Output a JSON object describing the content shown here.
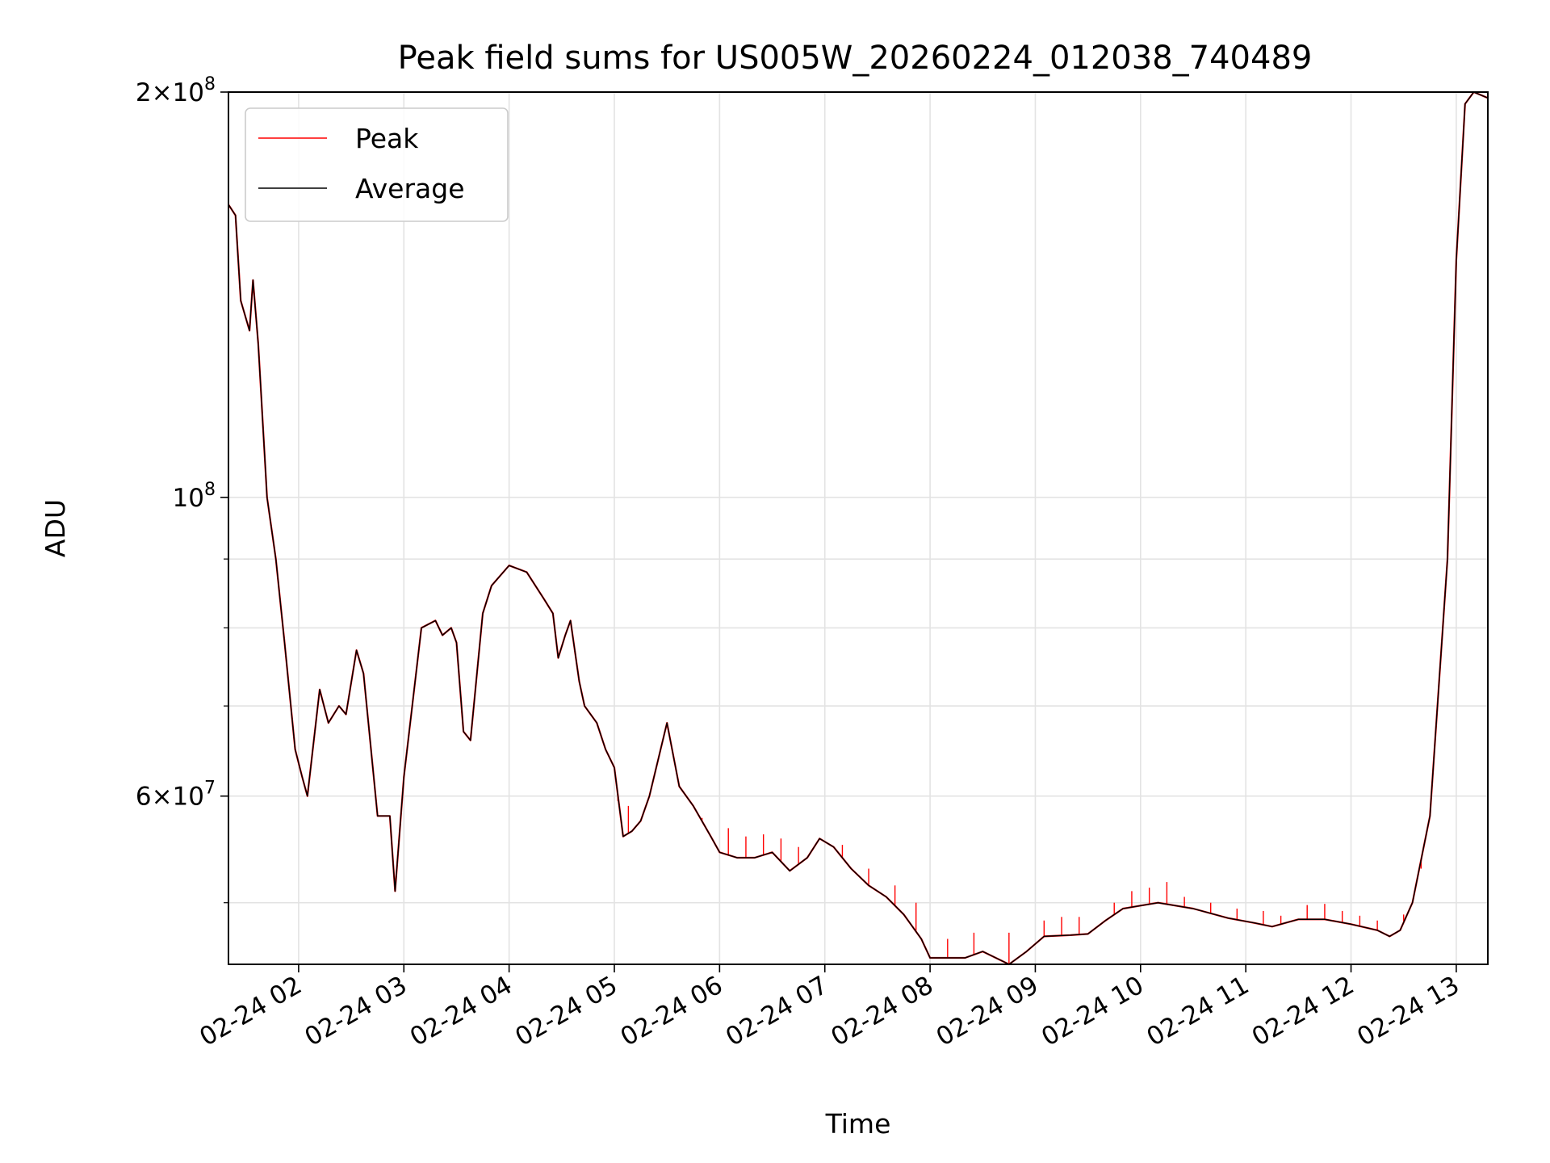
{
  "chart_data": {
    "type": "line",
    "title": "Peak field sums for US005W_20260224_012038_740489",
    "xlabel": "Time",
    "ylabel": "ADU",
    "y_scale": "log",
    "grid": true,
    "legend_position": "top-left",
    "xlim": [
      "2026-02-24 01:20",
      "2026-02-24 13:18"
    ],
    "ylim": [
      45000000,
      200000000
    ],
    "x_ticks": [
      {
        "label": "02-24 02",
        "time": "2026-02-24 02:00"
      },
      {
        "label": "02-24 03",
        "time": "2026-02-24 03:00"
      },
      {
        "label": "02-24 04",
        "time": "2026-02-24 04:00"
      },
      {
        "label": "02-24 05",
        "time": "2026-02-24 05:00"
      },
      {
        "label": "02-24 06",
        "time": "2026-02-24 06:00"
      },
      {
        "label": "02-24 07",
        "time": "2026-02-24 07:00"
      },
      {
        "label": "02-24 08",
        "time": "2026-02-24 08:00"
      },
      {
        "label": "02-24 09",
        "time": "2026-02-24 09:00"
      },
      {
        "label": "02-24 10",
        "time": "2026-02-24 10:00"
      },
      {
        "label": "02-24 11",
        "time": "2026-02-24 11:00"
      },
      {
        "label": "02-24 12",
        "time": "2026-02-24 12:00"
      },
      {
        "label": "02-24 13",
        "time": "2026-02-24 13:00"
      }
    ],
    "y_major_ticks": [
      {
        "base": "2×10",
        "exp": "8",
        "value": 200000000
      },
      {
        "base": "10",
        "exp": "8",
        "value": 100000000
      },
      {
        "base": "6×10",
        "exp": "7",
        "value": 60000000
      }
    ],
    "y_minor_gridlines": [
      50000000,
      70000000,
      80000000,
      90000000
    ],
    "series": [
      {
        "name": "Average",
        "color": "#000000",
        "points": [
          [
            "2026-02-24 01:20",
            165000000
          ],
          [
            "2026-02-24 01:24",
            162000000
          ],
          [
            "2026-02-24 01:27",
            140000000
          ],
          [
            "2026-02-24 01:32",
            133000000
          ],
          [
            "2026-02-24 01:34",
            145000000
          ],
          [
            "2026-02-24 01:37",
            130000000
          ],
          [
            "2026-02-24 01:42",
            100000000
          ],
          [
            "2026-02-24 01:47",
            90000000
          ],
          [
            "2026-02-24 01:52",
            78000000
          ],
          [
            "2026-02-24 01:58",
            65000000
          ],
          [
            "2026-02-24 02:02",
            62000000
          ],
          [
            "2026-02-24 02:05",
            60000000
          ],
          [
            "2026-02-24 02:12",
            72000000
          ],
          [
            "2026-02-24 02:17",
            68000000
          ],
          [
            "2026-02-24 02:23",
            70000000
          ],
          [
            "2026-02-24 02:27",
            69000000
          ],
          [
            "2026-02-24 02:33",
            77000000
          ],
          [
            "2026-02-24 02:37",
            74000000
          ],
          [
            "2026-02-24 02:45",
            58000000
          ],
          [
            "2026-02-24 02:52",
            58000000
          ],
          [
            "2026-02-24 02:55",
            51000000
          ],
          [
            "2026-02-24 03:00",
            62000000
          ],
          [
            "2026-02-24 03:10",
            80000000
          ],
          [
            "2026-02-24 03:18",
            81000000
          ],
          [
            "2026-02-24 03:22",
            79000000
          ],
          [
            "2026-02-24 03:27",
            80000000
          ],
          [
            "2026-02-24 03:30",
            78000000
          ],
          [
            "2026-02-24 03:34",
            67000000
          ],
          [
            "2026-02-24 03:38",
            66000000
          ],
          [
            "2026-02-24 03:45",
            82000000
          ],
          [
            "2026-02-24 03:50",
            86000000
          ],
          [
            "2026-02-24 04:00",
            89000000
          ],
          [
            "2026-02-24 04:10",
            88000000
          ],
          [
            "2026-02-24 04:20",
            84000000
          ],
          [
            "2026-02-24 04:25",
            82000000
          ],
          [
            "2026-02-24 04:28",
            76000000
          ],
          [
            "2026-02-24 04:32",
            79000000
          ],
          [
            "2026-02-24 04:35",
            81000000
          ],
          [
            "2026-02-24 04:40",
            73000000
          ],
          [
            "2026-02-24 04:43",
            70000000
          ],
          [
            "2026-02-24 04:50",
            68000000
          ],
          [
            "2026-02-24 04:55",
            65000000
          ],
          [
            "2026-02-24 05:00",
            63000000
          ],
          [
            "2026-02-24 05:05",
            56000000
          ],
          [
            "2026-02-24 05:10",
            56500000
          ],
          [
            "2026-02-24 05:15",
            57500000
          ],
          [
            "2026-02-24 05:20",
            60000000
          ],
          [
            "2026-02-24 05:30",
            68000000
          ],
          [
            "2026-02-24 05:37",
            61000000
          ],
          [
            "2026-02-24 05:45",
            59000000
          ],
          [
            "2026-02-24 05:55",
            56000000
          ],
          [
            "2026-02-24 06:00",
            54500000
          ],
          [
            "2026-02-24 06:10",
            54000000
          ],
          [
            "2026-02-24 06:20",
            54000000
          ],
          [
            "2026-02-24 06:30",
            54500000
          ],
          [
            "2026-02-24 06:40",
            52800000
          ],
          [
            "2026-02-24 06:50",
            54000000
          ],
          [
            "2026-02-24 06:57",
            55800000
          ],
          [
            "2026-02-24 07:05",
            55000000
          ],
          [
            "2026-02-24 07:15",
            53000000
          ],
          [
            "2026-02-24 07:25",
            51500000
          ],
          [
            "2026-02-24 07:35",
            50500000
          ],
          [
            "2026-02-24 07:45",
            49000000
          ],
          [
            "2026-02-24 07:55",
            47000000
          ],
          [
            "2026-02-24 08:00",
            45500000
          ],
          [
            "2026-02-24 08:05",
            45500000
          ],
          [
            "2026-02-24 08:20",
            45500000
          ],
          [
            "2026-02-24 08:30",
            46000000
          ],
          [
            "2026-02-24 08:45",
            45000000
          ],
          [
            "2026-02-24 08:55",
            46000000
          ],
          [
            "2026-02-24 09:05",
            47200000
          ],
          [
            "2026-02-24 09:20",
            47300000
          ],
          [
            "2026-02-24 09:30",
            47400000
          ],
          [
            "2026-02-24 09:40",
            48500000
          ],
          [
            "2026-02-24 09:50",
            49500000
          ],
          [
            "2026-02-24 10:10",
            50000000
          ],
          [
            "2026-02-24 10:30",
            49500000
          ],
          [
            "2026-02-24 10:50",
            48700000
          ],
          [
            "2026-02-24 11:05",
            48300000
          ],
          [
            "2026-02-24 11:15",
            48000000
          ],
          [
            "2026-02-24 11:30",
            48600000
          ],
          [
            "2026-02-24 11:45",
            48600000
          ],
          [
            "2026-02-24 12:00",
            48200000
          ],
          [
            "2026-02-24 12:15",
            47700000
          ],
          [
            "2026-02-24 12:22",
            47200000
          ],
          [
            "2026-02-24 12:28",
            47700000
          ],
          [
            "2026-02-24 12:35",
            50000000
          ],
          [
            "2026-02-24 12:45",
            58000000
          ],
          [
            "2026-02-24 12:55",
            90000000
          ],
          [
            "2026-02-24 13:00",
            150000000
          ],
          [
            "2026-02-24 13:05",
            196000000
          ],
          [
            "2026-02-24 13:10",
            200000000
          ],
          [
            "2026-02-24 13:18",
            198000000
          ]
        ]
      },
      {
        "name": "Peak",
        "color": "#ff0000",
        "spikes": [
          [
            "2026-02-24 05:02",
            59500000
          ],
          [
            "2026-02-24 05:08",
            59000000
          ],
          [
            "2026-02-24 05:50",
            57800000
          ],
          [
            "2026-02-24 06:05",
            56800000
          ],
          [
            "2026-02-24 06:15",
            56000000
          ],
          [
            "2026-02-24 06:25",
            56200000
          ],
          [
            "2026-02-24 06:35",
            55800000
          ],
          [
            "2026-02-24 06:45",
            55000000
          ],
          [
            "2026-02-24 07:10",
            55200000
          ],
          [
            "2026-02-24 07:25",
            53000000
          ],
          [
            "2026-02-24 07:40",
            51500000
          ],
          [
            "2026-02-24 07:52",
            50000000
          ],
          [
            "2026-02-24 08:10",
            47000000
          ],
          [
            "2026-02-24 08:25",
            47500000
          ],
          [
            "2026-02-24 08:45",
            47500000
          ],
          [
            "2026-02-24 09:05",
            48500000
          ],
          [
            "2026-02-24 09:15",
            48800000
          ],
          [
            "2026-02-24 09:25",
            48800000
          ],
          [
            "2026-02-24 09:45",
            50000000
          ],
          [
            "2026-02-24 09:55",
            51000000
          ],
          [
            "2026-02-24 10:05",
            51300000
          ],
          [
            "2026-02-24 10:15",
            51800000
          ],
          [
            "2026-02-24 10:25",
            50500000
          ],
          [
            "2026-02-24 10:40",
            50000000
          ],
          [
            "2026-02-24 10:55",
            49500000
          ],
          [
            "2026-02-24 11:10",
            49300000
          ],
          [
            "2026-02-24 11:20",
            48900000
          ],
          [
            "2026-02-24 11:35",
            49800000
          ],
          [
            "2026-02-24 11:45",
            49900000
          ],
          [
            "2026-02-24 11:55",
            49300000
          ],
          [
            "2026-02-24 12:05",
            48900000
          ],
          [
            "2026-02-24 12:15",
            48500000
          ],
          [
            "2026-02-24 12:30",
            49000000
          ],
          [
            "2026-02-24 12:40",
            53000000
          ]
        ]
      }
    ]
  }
}
